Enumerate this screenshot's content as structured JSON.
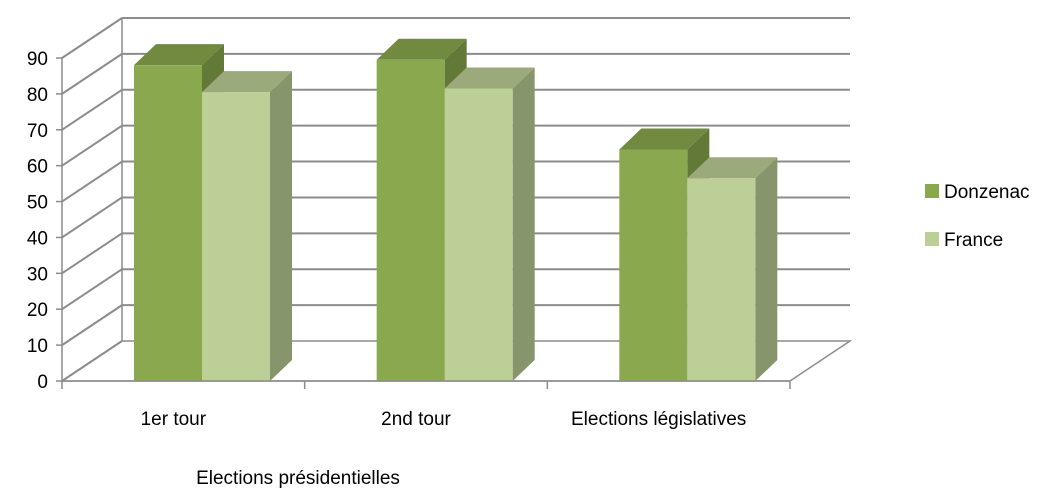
{
  "chart_data": {
    "type": "bar",
    "title": "",
    "xlabel": "",
    "ylabel": "",
    "ylim": [
      0,
      90
    ],
    "yticks": [
      0,
      10,
      20,
      30,
      40,
      50,
      60,
      70,
      80,
      90
    ],
    "grid": true,
    "legend_position": "right",
    "categories": [
      "1er tour",
      "2nd tour",
      "Elections législatives"
    ],
    "group_label": "Elections présidentielles",
    "series": [
      {
        "name": "Donzenac",
        "values": [
          88,
          89.5,
          64.5
        ],
        "color": "#8aa84e"
      },
      {
        "name": "France",
        "values": [
          80.5,
          81.5,
          56.5
        ],
        "color": "#bccf96"
      }
    ]
  }
}
